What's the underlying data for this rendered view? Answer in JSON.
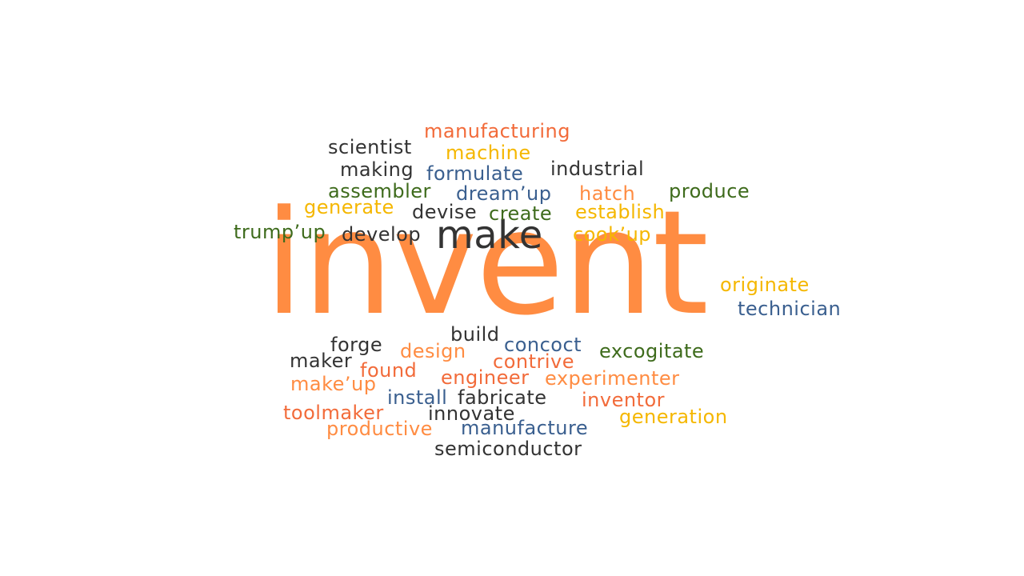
{
  "words": [
    {
      "text": "invent",
      "color": "orange"
    },
    {
      "text": "make",
      "color": "dark"
    },
    {
      "text": "manufacturing",
      "color": "red"
    },
    {
      "text": "scientist",
      "color": "dark"
    },
    {
      "text": "machine",
      "color": "yellow"
    },
    {
      "text": "making",
      "color": "dark"
    },
    {
      "text": "formulate",
      "color": "blue"
    },
    {
      "text": "industrial",
      "color": "dark"
    },
    {
      "text": "assembler",
      "color": "green"
    },
    {
      "text": "dream’up",
      "color": "blue"
    },
    {
      "text": "hatch",
      "color": "orange"
    },
    {
      "text": "produce",
      "color": "green"
    },
    {
      "text": "generate",
      "color": "yellow"
    },
    {
      "text": "devise",
      "color": "dark"
    },
    {
      "text": "create",
      "color": "green"
    },
    {
      "text": "establish",
      "color": "yellow"
    },
    {
      "text": "trump’up",
      "color": "green"
    },
    {
      "text": "develop",
      "color": "dark"
    },
    {
      "text": "cook’up",
      "color": "yellow"
    },
    {
      "text": "originate",
      "color": "yellow"
    },
    {
      "text": "technician",
      "color": "blue"
    },
    {
      "text": "build",
      "color": "dark"
    },
    {
      "text": "forge",
      "color": "dark"
    },
    {
      "text": "design",
      "color": "orange"
    },
    {
      "text": "concoct",
      "color": "blue"
    },
    {
      "text": "excogitate",
      "color": "green"
    },
    {
      "text": "maker",
      "color": "dark"
    },
    {
      "text": "contrive",
      "color": "red"
    },
    {
      "text": "found",
      "color": "red"
    },
    {
      "text": "engineer",
      "color": "red"
    },
    {
      "text": "experimenter",
      "color": "orange"
    },
    {
      "text": "make’up",
      "color": "orange"
    },
    {
      "text": "install",
      "color": "blue"
    },
    {
      "text": "fabricate",
      "color": "dark"
    },
    {
      "text": "inventor",
      "color": "red"
    },
    {
      "text": "toolmaker",
      "color": "red"
    },
    {
      "text": "innovate",
      "color": "dark"
    },
    {
      "text": "generation",
      "color": "yellow"
    },
    {
      "text": "productive",
      "color": "orange"
    },
    {
      "text": "manufacture",
      "color": "blue"
    },
    {
      "text": "semiconductor",
      "color": "dark"
    }
  ],
  "palette": {
    "orange": "#ff8c42",
    "red": "#f26b3a",
    "yellow": "#f5b700",
    "blue": "#3a5f8f",
    "green": "#3e6b1c",
    "dark": "#333333"
  }
}
